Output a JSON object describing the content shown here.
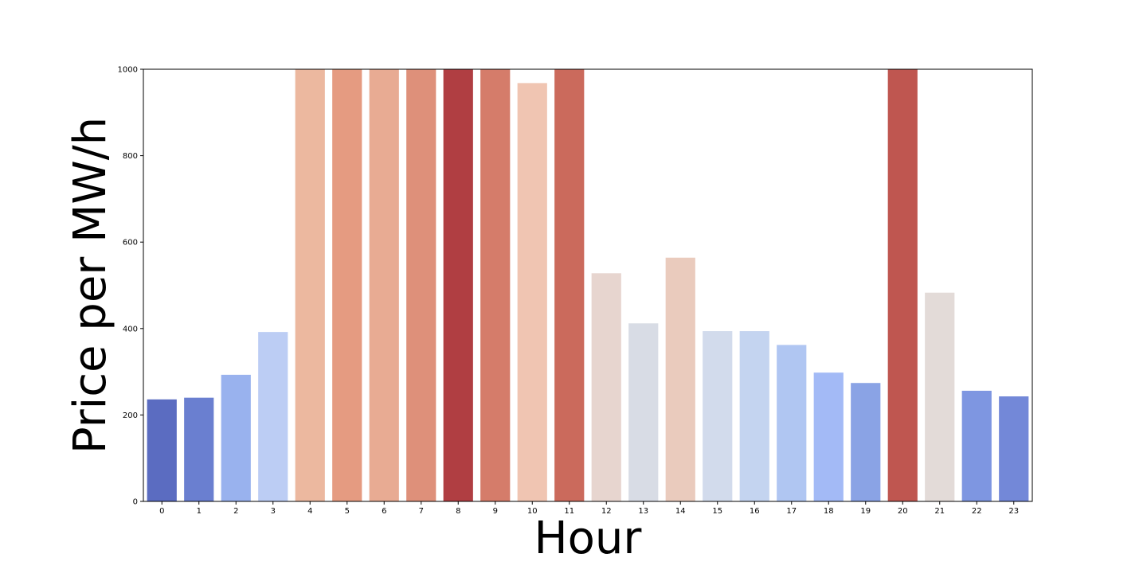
{
  "chart_data": {
    "type": "bar",
    "title": "",
    "xlabel": "Hour",
    "ylabel": "Price per MW/h",
    "categories": [
      "0",
      "1",
      "2",
      "3",
      "4",
      "5",
      "6",
      "7",
      "8",
      "9",
      "10",
      "11",
      "12",
      "13",
      "14",
      "15",
      "16",
      "17",
      "18",
      "19",
      "20",
      "21",
      "22",
      "23"
    ],
    "values": [
      236,
      240,
      293,
      392,
      1000,
      1000,
      1000,
      1000,
      1000,
      1000,
      968,
      1000,
      528,
      412,
      564,
      394,
      394,
      362,
      298,
      274,
      1000,
      483,
      256,
      243
    ],
    "ylim": [
      0,
      1000
    ],
    "yticks": [
      0,
      200,
      400,
      600,
      800,
      1000
    ],
    "grid": false,
    "colormap": "coolwarm",
    "colors": [
      "#5b6cc1",
      "#6a7fd0",
      "#99b2ee",
      "#bccdf4",
      "#ecb89f",
      "#e59b81",
      "#e8ab93",
      "#de907a",
      "#b03e42",
      "#d57c6a",
      "#f0c5b2",
      "#cb6a5c",
      "#e7d5cf",
      "#d8dce5",
      "#eacbbd",
      "#d2dbec",
      "#c4d4f0",
      "#b0c6f2",
      "#a3baf6",
      "#8aa3e5",
      "#bf5650",
      "#e3dbd8",
      "#7e96e1",
      "#7388d8"
    ]
  }
}
